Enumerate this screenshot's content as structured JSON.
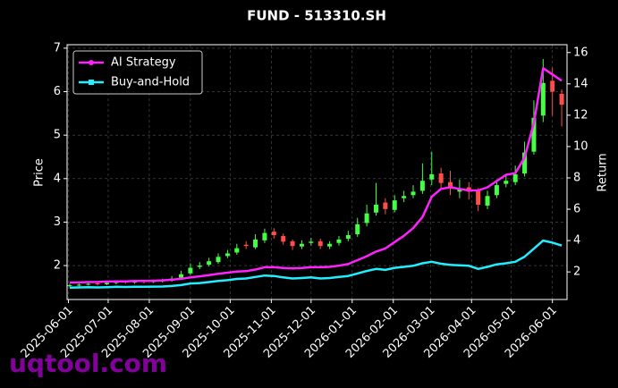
{
  "chart_data": {
    "type": "candlestick",
    "title": "FUND - 513310.SH",
    "ylabel": "Price",
    "y2label": "Return",
    "watermark": "uqtool.com",
    "up_color": "#44ff44",
    "down_color": "#ff4d4d",
    "x": [
      "2025-06-02",
      "2025-06-09",
      "2025-06-16",
      "2025-06-23",
      "2025-06-30",
      "2025-07-07",
      "2025-07-14",
      "2025-07-21",
      "2025-07-28",
      "2025-08-04",
      "2025-08-11",
      "2025-08-18",
      "2025-08-25",
      "2025-09-01",
      "2025-09-08",
      "2025-09-15",
      "2025-09-22",
      "2025-09-29",
      "2025-10-06",
      "2025-10-13",
      "2025-10-20",
      "2025-10-27",
      "2025-11-03",
      "2025-11-10",
      "2025-11-17",
      "2025-11-24",
      "2025-12-01",
      "2025-12-08",
      "2025-12-15",
      "2025-12-22",
      "2025-12-29",
      "2026-01-05",
      "2026-01-12",
      "2026-01-19",
      "2026-01-26",
      "2026-02-02",
      "2026-02-09",
      "2026-02-16",
      "2026-02-23",
      "2026-03-02",
      "2026-03-09",
      "2026-03-16",
      "2026-03-23",
      "2026-03-30",
      "2026-04-06",
      "2026-04-13",
      "2026-04-20",
      "2026-04-27",
      "2026-05-04",
      "2026-05-11",
      "2026-05-18",
      "2026-05-25",
      "2026-06-01",
      "2026-06-08"
    ],
    "open": [
      1.53,
      1.55,
      1.57,
      1.59,
      1.57,
      1.6,
      1.63,
      1.61,
      1.64,
      1.62,
      1.64,
      1.66,
      1.72,
      1.82,
      1.97,
      2.02,
      2.08,
      2.22,
      2.3,
      2.48,
      2.42,
      2.58,
      2.78,
      2.68,
      2.56,
      2.44,
      2.52,
      2.56,
      2.44,
      2.52,
      2.62,
      2.72,
      2.98,
      3.22,
      3.45,
      3.28,
      3.55,
      3.62,
      3.72,
      3.98,
      4.12,
      3.92,
      3.7,
      3.8,
      3.72,
      3.38,
      3.62,
      3.88,
      3.92,
      4.12,
      4.62,
      5.45,
      6.25,
      5.95
    ],
    "high": [
      1.58,
      1.59,
      1.62,
      1.63,
      1.64,
      1.66,
      1.66,
      1.67,
      1.67,
      1.68,
      1.7,
      1.76,
      1.88,
      2.05,
      2.08,
      2.18,
      2.28,
      2.36,
      2.5,
      2.56,
      2.72,
      2.85,
      2.86,
      2.74,
      2.6,
      2.58,
      2.64,
      2.62,
      2.56,
      2.68,
      2.8,
      3.1,
      3.4,
      3.9,
      3.55,
      3.62,
      3.72,
      3.85,
      4.35,
      4.62,
      4.25,
      4.18,
      3.98,
      3.92,
      3.78,
      3.72,
      3.98,
      4.1,
      4.3,
      4.85,
      5.8,
      6.75,
      6.55,
      6.05
    ],
    "low": [
      1.5,
      1.52,
      1.54,
      1.54,
      1.55,
      1.57,
      1.58,
      1.58,
      1.59,
      1.6,
      1.61,
      1.63,
      1.69,
      1.78,
      1.92,
      1.98,
      2.04,
      2.17,
      2.25,
      2.38,
      2.38,
      2.52,
      2.62,
      2.48,
      2.36,
      2.38,
      2.46,
      2.38,
      2.38,
      2.46,
      2.56,
      2.66,
      2.9,
      3.15,
      3.18,
      3.22,
      3.46,
      3.55,
      3.65,
      3.85,
      3.78,
      3.62,
      3.55,
      3.52,
      3.25,
      3.3,
      3.55,
      3.8,
      3.85,
      4.05,
      4.55,
      5.3,
      5.45,
      5.2
    ],
    "close": [
      1.55,
      1.56,
      1.58,
      1.57,
      1.6,
      1.62,
      1.61,
      1.63,
      1.62,
      1.64,
      1.66,
      1.7,
      1.8,
      1.95,
      2.0,
      2.1,
      2.2,
      2.28,
      2.4,
      2.45,
      2.6,
      2.75,
      2.7,
      2.55,
      2.45,
      2.5,
      2.55,
      2.45,
      2.5,
      2.6,
      2.7,
      2.95,
      3.2,
      3.4,
      3.3,
      3.5,
      3.6,
      3.7,
      3.95,
      4.1,
      3.9,
      3.8,
      3.75,
      3.7,
      3.4,
      3.6,
      3.85,
      3.95,
      4.1,
      4.6,
      5.4,
      6.2,
      6.0,
      5.7
    ],
    "series": [
      {
        "name": "AI Strategy",
        "color": "#ff22ff",
        "axis": "y2",
        "values": [
          1.32,
          1.33,
          1.35,
          1.36,
          1.38,
          1.4,
          1.4,
          1.42,
          1.42,
          1.44,
          1.46,
          1.5,
          1.56,
          1.65,
          1.72,
          1.8,
          1.88,
          1.95,
          2.02,
          2.05,
          2.15,
          2.3,
          2.3,
          2.25,
          2.22,
          2.25,
          2.3,
          2.3,
          2.32,
          2.4,
          2.5,
          2.75,
          3.0,
          3.3,
          3.5,
          3.9,
          4.3,
          4.8,
          5.5,
          6.8,
          7.3,
          7.4,
          7.3,
          7.2,
          7.2,
          7.4,
          7.8,
          8.2,
          8.3,
          9.3,
          11.5,
          15.0,
          14.6,
          14.2
        ]
      },
      {
        "name": "Buy-and-Hold",
        "color": "#22eeff",
        "axis": "y2",
        "values": [
          1.0,
          1.01,
          1.02,
          1.01,
          1.03,
          1.05,
          1.04,
          1.05,
          1.05,
          1.06,
          1.07,
          1.1,
          1.16,
          1.26,
          1.29,
          1.35,
          1.42,
          1.47,
          1.55,
          1.58,
          1.68,
          1.77,
          1.74,
          1.65,
          1.58,
          1.61,
          1.65,
          1.58,
          1.61,
          1.68,
          1.74,
          1.9,
          2.06,
          2.19,
          2.13,
          2.26,
          2.32,
          2.39,
          2.55,
          2.65,
          2.52,
          2.45,
          2.42,
          2.39,
          2.19,
          2.32,
          2.48,
          2.55,
          2.65,
          2.97,
          3.48,
          4.0,
          3.87,
          3.68
        ]
      }
    ],
    "xlim": [
      "2025-05-31",
      "2026-06-12"
    ],
    "xticks": [
      "2025-06-01",
      "2025-07-01",
      "2025-08-01",
      "2025-09-01",
      "2025-10-01",
      "2025-11-01",
      "2025-12-01",
      "2026-01-01",
      "2026-02-01",
      "2026-03-01",
      "2026-04-01",
      "2026-05-01",
      "2026-06-01"
    ],
    "ylim": [
      1.22,
      7.08
    ],
    "yticks": [
      2,
      3,
      4,
      5,
      6,
      7
    ],
    "y2lim": [
      0.24,
      16.5
    ],
    "y2ticks": [
      2,
      4,
      6,
      8,
      10,
      12,
      14,
      16
    ],
    "grid": true,
    "legend": "upper left"
  }
}
